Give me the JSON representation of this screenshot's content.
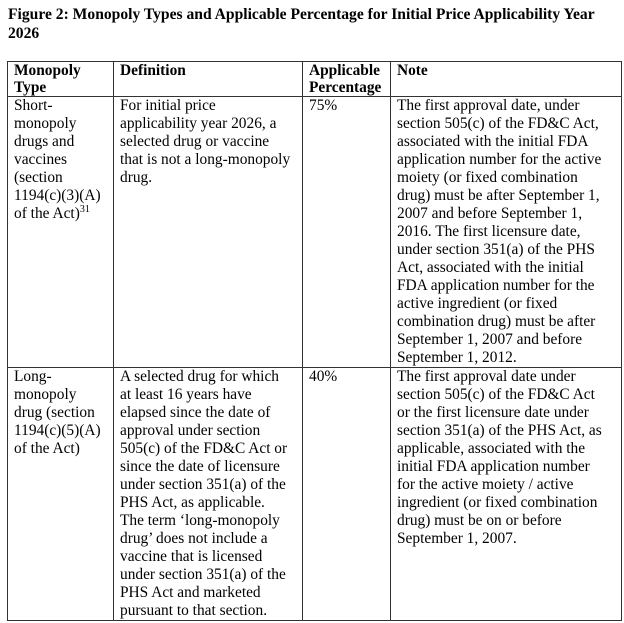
{
  "title": "Figure 2: Monopoly Types and Applicable Percentage for Initial Price Applicability Year\n2026",
  "table": {
    "headers": [
      "Monopoly\nType",
      "Definition",
      "Applicable\nPercentage",
      "Note"
    ],
    "rows": [
      {
        "type": "Short-\nmonopoly\ndrugs and\nvaccines\n(section\n1194(c)(3)(A)\nof the Act)",
        "footnote": "31",
        "definition": "For initial price\napplicability year 2026, a\nselected drug or vaccine\nthat is not a long-monopoly\ndrug.",
        "percentage": "75%",
        "note": "The first approval date, under\nsection 505(c) of the FD&C Act,\nassociated with the initial FDA\napplication number for the active\nmoiety (or fixed combination\ndrug) must be after September 1,\n2007 and before September 1,\n2016. The first licensure date,\nunder section 351(a) of the PHS\nAct, associated with the initial\nFDA application number for the\nactive ingredient (or fixed\ncombination drug) must be after\nSeptember 1, 2007 and before\nSeptember 1, 2012."
      },
      {
        "type": "Long-\nmonopoly\ndrug (section\n1194(c)(5)(A)\nof the Act)",
        "definition": "A selected drug for which\nat least 16 years have\nelapsed since the date of\napproval under section\n505(c) of the FD&C Act or\nsince the date of licensure\nunder section 351(a) of the\nPHS Act, as applicable.\nThe term ‘long-monopoly\ndrug’ does not include a\nvaccine that is licensed\nunder section 351(a) of the\nPHS Act and marketed\npursuant to that section.",
        "percentage": "40%",
        "note": "The first approval date under\nsection 505(c) of the FD&C Act\nor the first licensure date under\nsection 351(a) of the PHS Act, as\napplicable, associated with the\ninitial FDA application number\nfor the active moiety / active\ningredient (or fixed combination\ndrug) must be on or before\nSeptember 1, 2007."
      }
    ]
  }
}
